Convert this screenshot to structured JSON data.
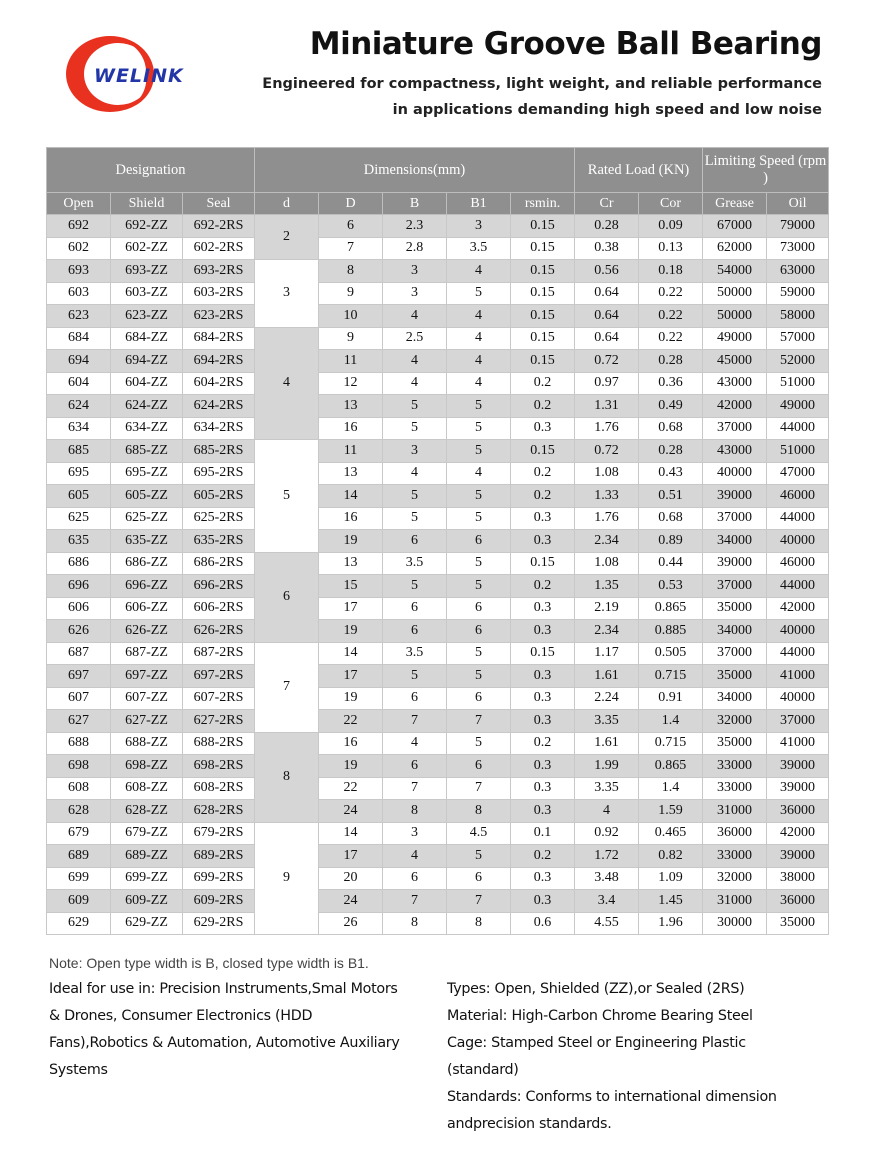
{
  "brand": {
    "logo_text": "WELINK",
    "colors": {
      "ring": "#e8311f",
      "text": "#2236a8"
    }
  },
  "header": {
    "title": "Miniature Groove Ball Bearing",
    "subtitle_line1": "Engineered for compactness, light weight, and reliable performance",
    "subtitle_line2": "in applications demanding high speed and low noise"
  },
  "table": {
    "group_headers": {
      "designation": "Designation",
      "dimensions": "Dimensions(mm)",
      "rated_load": "Rated Load (KN)",
      "limiting_speed": "Limiting Speed (rpm )"
    },
    "columns": [
      "Open",
      "Shield",
      "Seal",
      "d",
      "D",
      "B",
      "B1",
      "rsmin.",
      "Cr",
      "Cor",
      "Grease",
      "Oil"
    ],
    "groups": [
      {
        "d": "2",
        "rows": [
          [
            "692",
            "692-ZZ",
            "692-2RS",
            "6",
            "2.3",
            "3",
            "0.15",
            "0.28",
            "0.09",
            "67000",
            "79000"
          ],
          [
            "602",
            "602-ZZ",
            "602-2RS",
            "7",
            "2.8",
            "3.5",
            "0.15",
            "0.38",
            "0.13",
            "62000",
            "73000"
          ]
        ]
      },
      {
        "d": "3",
        "rows": [
          [
            "693",
            "693-ZZ",
            "693-2RS",
            "8",
            "3",
            "4",
            "0.15",
            "0.56",
            "0.18",
            "54000",
            "63000"
          ],
          [
            "603",
            "603-ZZ",
            "603-2RS",
            "9",
            "3",
            "5",
            "0.15",
            "0.64",
            "0.22",
            "50000",
            "59000"
          ],
          [
            "623",
            "623-ZZ",
            "623-2RS",
            "10",
            "4",
            "4",
            "0.15",
            "0.64",
            "0.22",
            "50000",
            "58000"
          ]
        ]
      },
      {
        "d": "4",
        "rows": [
          [
            "684",
            "684-ZZ",
            "684-2RS",
            "9",
            "2.5",
            "4",
            "0.15",
            "0.64",
            "0.22",
            "49000",
            "57000"
          ],
          [
            "694",
            "694-ZZ",
            "694-2RS",
            "11",
            "4",
            "4",
            "0.15",
            "0.72",
            "0.28",
            "45000",
            "52000"
          ],
          [
            "604",
            "604-ZZ",
            "604-2RS",
            "12",
            "4",
            "4",
            "0.2",
            "0.97",
            "0.36",
            "43000",
            "51000"
          ],
          [
            "624",
            "624-ZZ",
            "624-2RS",
            "13",
            "5",
            "5",
            "0.2",
            "1.31",
            "0.49",
            "42000",
            "49000"
          ],
          [
            "634",
            "634-ZZ",
            "634-2RS",
            "16",
            "5",
            "5",
            "0.3",
            "1.76",
            "0.68",
            "37000",
            "44000"
          ]
        ]
      },
      {
        "d": "5",
        "rows": [
          [
            "685",
            "685-ZZ",
            "685-2RS",
            "11",
            "3",
            "5",
            "0.15",
            "0.72",
            "0.28",
            "43000",
            "51000"
          ],
          [
            "695",
            "695-ZZ",
            "695-2RS",
            "13",
            "4",
            "4",
            "0.2",
            "1.08",
            "0.43",
            "40000",
            "47000"
          ],
          [
            "605",
            "605-ZZ",
            "605-2RS",
            "14",
            "5",
            "5",
            "0.2",
            "1.33",
            "0.51",
            "39000",
            "46000"
          ],
          [
            "625",
            "625-ZZ",
            "625-2RS",
            "16",
            "5",
            "5",
            "0.3",
            "1.76",
            "0.68",
            "37000",
            "44000"
          ],
          [
            "635",
            "635-ZZ",
            "635-2RS",
            "19",
            "6",
            "6",
            "0.3",
            "2.34",
            "0.89",
            "34000",
            "40000"
          ]
        ]
      },
      {
        "d": "6",
        "rows": [
          [
            "686",
            "686-ZZ",
            "686-2RS",
            "13",
            "3.5",
            "5",
            "0.15",
            "1.08",
            "0.44",
            "39000",
            "46000"
          ],
          [
            "696",
            "696-ZZ",
            "696-2RS",
            "15",
            "5",
            "5",
            "0.2",
            "1.35",
            "0.53",
            "37000",
            "44000"
          ],
          [
            "606",
            "606-ZZ",
            "606-2RS",
            "17",
            "6",
            "6",
            "0.3",
            "2.19",
            "0.865",
            "35000",
            "42000"
          ],
          [
            "626",
            "626-ZZ",
            "626-2RS",
            "19",
            "6",
            "6",
            "0.3",
            "2.34",
            "0.885",
            "34000",
            "40000"
          ]
        ]
      },
      {
        "d": "7",
        "rows": [
          [
            "687",
            "687-ZZ",
            "687-2RS",
            "14",
            "3.5",
            "5",
            "0.15",
            "1.17",
            "0.505",
            "37000",
            "44000"
          ],
          [
            "697",
            "697-ZZ",
            "697-2RS",
            "17",
            "5",
            "5",
            "0.3",
            "1.61",
            "0.715",
            "35000",
            "41000"
          ],
          [
            "607",
            "607-ZZ",
            "607-2RS",
            "19",
            "6",
            "6",
            "0.3",
            "2.24",
            "0.91",
            "34000",
            "40000"
          ],
          [
            "627",
            "627-ZZ",
            "627-2RS",
            "22",
            "7",
            "7",
            "0.3",
            "3.35",
            "1.4",
            "32000",
            "37000"
          ]
        ]
      },
      {
        "d": "8",
        "rows": [
          [
            "688",
            "688-ZZ",
            "688-2RS",
            "16",
            "4",
            "5",
            "0.2",
            "1.61",
            "0.715",
            "35000",
            "41000"
          ],
          [
            "698",
            "698-ZZ",
            "698-2RS",
            "19",
            "6",
            "6",
            "0.3",
            "1.99",
            "0.865",
            "33000",
            "39000"
          ],
          [
            "608",
            "608-ZZ",
            "608-2RS",
            "22",
            "7",
            "7",
            "0.3",
            "3.35",
            "1.4",
            "33000",
            "39000"
          ],
          [
            "628",
            "628-ZZ",
            "628-2RS",
            "24",
            "8",
            "8",
            "0.3",
            "4",
            "1.59",
            "31000",
            "36000"
          ]
        ]
      },
      {
        "d": "9",
        "rows": [
          [
            "679",
            "679-ZZ",
            "679-2RS",
            "14",
            "3",
            "4.5",
            "0.1",
            "0.92",
            "0.465",
            "36000",
            "42000"
          ],
          [
            "689",
            "689-ZZ",
            "689-2RS",
            "17",
            "4",
            "5",
            "0.2",
            "1.72",
            "0.82",
            "33000",
            "39000"
          ],
          [
            "699",
            "699-ZZ",
            "699-2RS",
            "20",
            "6",
            "6",
            "0.3",
            "3.48",
            "1.09",
            "32000",
            "38000"
          ],
          [
            "609",
            "609-ZZ",
            "609-2RS",
            "24",
            "7",
            "7",
            "0.3",
            "3.4",
            "1.45",
            "31000",
            "36000"
          ],
          [
            "629",
            "629-ZZ",
            "629-2RS",
            "26",
            "8",
            "8",
            "0.6",
            "4.55",
            "1.96",
            "30000",
            "35000"
          ]
        ]
      }
    ]
  },
  "note": "Note: Open type width is B, closed type width is B1.",
  "applications": "Ideal for use in: Precision Instruments,Smal Motors & Drones, Consumer Electronics (HDD Fans),Robotics & Automation, Automotive Auxiliary Systems",
  "specs": {
    "types": "Types: Open, Shielded (ZZ),or Sealed (2RS)",
    "material": "Material: High-Carbon Chrome Bearing Steel",
    "cage_line1": "Cage: Stamped Steel or Engineering Plastic",
    "cage_line2": "(standard)",
    "standards_line1": "Standards: Conforms to international dimension",
    "standards_line2": "andprecision standards."
  }
}
